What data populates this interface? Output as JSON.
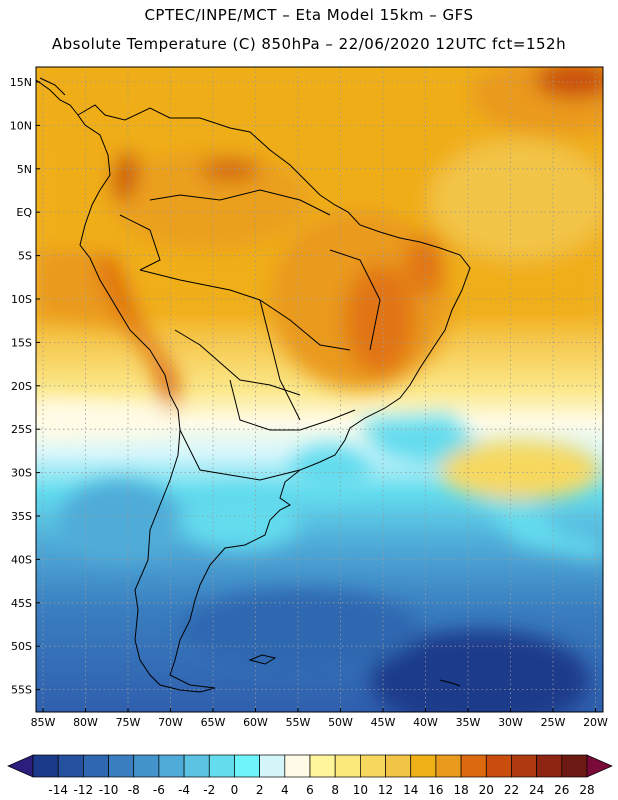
{
  "header": {
    "line1": "CPTEC/INPE/MCT –  Eta Model 15km – GFS",
    "line2": "Absolute Temperature (C) 850hPa – 22/06/2020 12UTC fct=152h"
  },
  "map": {
    "lon_labels": [
      "85W",
      "80W",
      "75W",
      "70W",
      "65W",
      "60W",
      "55W",
      "50W",
      "45W",
      "40W",
      "35W",
      "30W",
      "25W",
      "20W"
    ],
    "lat_labels": [
      "15N",
      "10N",
      "5N",
      "EQ",
      "5S",
      "10S",
      "15S",
      "20S",
      "25S",
      "30S",
      "35S",
      "40S",
      "45S",
      "50S",
      "55S"
    ]
  },
  "colorbar": {
    "labels": [
      "-14",
      "-12",
      "-10",
      "-8",
      "-6",
      "-4",
      "-2",
      "0",
      "2",
      "4",
      "6",
      "8",
      "10",
      "12",
      "14",
      "16",
      "18",
      "20",
      "22",
      "24",
      "26",
      "28"
    ],
    "colors": [
      "#1c3a8a",
      "#26519e",
      "#2f67b0",
      "#3a7ec0",
      "#4494cc",
      "#4fabd8",
      "#5cc3e3",
      "#63dcee",
      "#6ef5fb",
      "#d4f6fb",
      "#fffbe6",
      "#fff59a",
      "#fbe97b",
      "#f7d85f",
      "#f2c446",
      "#f0b018",
      "#ea9a1d",
      "#de6a10",
      "#c94d0d",
      "#b03a10",
      "#8e2512",
      "#6e1a14"
    ],
    "low_arrow_color": "#2b1f7d",
    "high_arrow_color": "#7a0a3a"
  }
}
